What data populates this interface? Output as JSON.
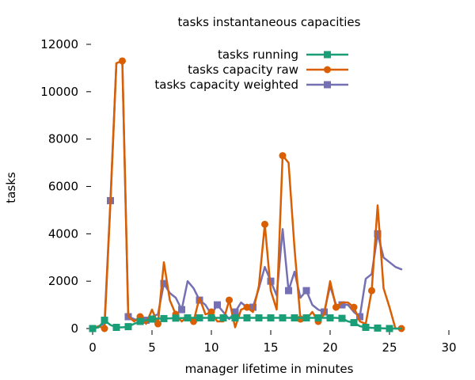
{
  "chart_data": {
    "type": "line",
    "title": "tasks instantaneous capacities",
    "xlabel": "manager lifetime in minutes",
    "ylabel": "tasks",
    "xlim": [
      0,
      30
    ],
    "ylim": [
      0,
      12000
    ],
    "xticks": [
      0,
      5,
      10,
      15,
      20,
      25,
      30
    ],
    "yticks": [
      0,
      2000,
      4000,
      6000,
      8000,
      10000,
      12000
    ],
    "grid": false,
    "legend_position": "top-right",
    "series": [
      {
        "name": "tasks running",
        "color": "#1a9e77",
        "marker": "square",
        "x": [
          0,
          0.5,
          1.0,
          1.5,
          2.0,
          2.5,
          3.0,
          3.5,
          4.0,
          4.5,
          5.0,
          5.5,
          6.0,
          6.5,
          7.0,
          7.5,
          8.0,
          8.5,
          9.0,
          9.5,
          10.0,
          10.5,
          11.0,
          11.5,
          12.0,
          12.5,
          13.0,
          13.5,
          14.0,
          14.5,
          15.0,
          15.5,
          16.0,
          16.5,
          17.0,
          17.5,
          18.0,
          18.5,
          19.0,
          19.5,
          20.0,
          20.5,
          21.0,
          21.5,
          22.0,
          22.5,
          23.0,
          23.5,
          24.0,
          24.5,
          25.0,
          25.5,
          26.0
        ],
        "y": [
          0,
          50,
          350,
          150,
          50,
          50,
          80,
          200,
          300,
          350,
          400,
          420,
          420,
          430,
          440,
          440,
          450,
          450,
          450,
          450,
          450,
          450,
          450,
          450,
          450,
          450,
          450,
          450,
          450,
          450,
          450,
          450,
          450,
          450,
          450,
          450,
          450,
          450,
          450,
          450,
          450,
          450,
          430,
          300,
          250,
          100,
          50,
          30,
          20,
          10,
          0,
          0,
          0
        ],
        "marker_x": [
          0,
          1.0,
          2.0,
          3.0,
          4.0,
          5.0,
          6.0,
          7.0,
          8.0,
          9.0,
          10.0,
          11.0,
          12.0,
          13.0,
          14.0,
          15.0,
          16.0,
          17.0,
          18.0,
          19.0,
          20.0,
          21.0,
          22.0,
          23.0,
          24.0,
          25.0
        ]
      },
      {
        "name": "tasks capacity raw",
        "color": "#d95f02",
        "marker": "circle",
        "x": [
          0,
          0.5,
          1.0,
          1.5,
          2.0,
          2.5,
          3.0,
          3.5,
          4.0,
          4.5,
          5.0,
          5.5,
          6.0,
          6.5,
          7.0,
          7.5,
          8.0,
          8.5,
          9.0,
          9.5,
          10.0,
          10.5,
          11.0,
          11.5,
          12.0,
          12.5,
          13.0,
          13.5,
          14.0,
          14.5,
          15.0,
          15.5,
          16.0,
          16.5,
          17.0,
          17.5,
          18.0,
          18.5,
          19.0,
          19.5,
          20.0,
          20.5,
          21.0,
          21.5,
          22.0,
          22.5,
          23.0,
          23.5,
          24.0,
          24.5,
          25.0,
          25.5,
          26.0
        ],
        "y": [
          0,
          100,
          0,
          5300,
          11200,
          11300,
          500,
          300,
          500,
          200,
          800,
          200,
          2800,
          1200,
          600,
          300,
          500,
          300,
          1300,
          600,
          700,
          300,
          300,
          1200,
          50,
          800,
          900,
          700,
          1800,
          4400,
          1600,
          800,
          7300,
          7000,
          3400,
          400,
          400,
          700,
          300,
          600,
          2000,
          900,
          1100,
          1100,
          900,
          300,
          200,
          1600,
          5200,
          1700,
          900,
          0,
          0
        ],
        "marker_x": [
          1.0,
          2.5,
          4.0,
          5.5,
          7.0,
          8.5,
          10.0,
          11.5,
          13.0,
          14.5,
          16.0,
          17.5,
          19.0,
          20.5,
          22.0,
          23.5,
          26.0
        ]
      },
      {
        "name": "tasks capacity weighted",
        "color": "#7570b3",
        "marker": "square",
        "x": [
          0,
          0.5,
          1.0,
          1.5,
          2.0,
          2.5,
          3.0,
          3.5,
          4.0,
          4.5,
          5.0,
          5.5,
          6.0,
          6.5,
          7.0,
          7.5,
          8.0,
          8.5,
          9.0,
          9.5,
          10.0,
          10.5,
          11.0,
          11.5,
          12.0,
          12.5,
          13.0,
          13.5,
          14.0,
          14.5,
          15.0,
          15.5,
          16.0,
          16.5,
          17.0,
          17.5,
          18.0,
          18.5,
          19.0,
          19.5,
          20.0,
          20.5,
          21.0,
          21.5,
          22.0,
          22.5,
          23.0,
          23.5,
          24.0,
          24.5,
          25.0,
          25.5,
          26.0
        ],
        "y": [
          0,
          100,
          200,
          5400,
          11200,
          11300,
          500,
          400,
          300,
          350,
          500,
          600,
          1900,
          1500,
          1300,
          800,
          2000,
          1700,
          1200,
          1000,
          600,
          1000,
          700,
          400,
          700,
          1100,
          900,
          900,
          1700,
          2600,
          2000,
          1400,
          4200,
          1600,
          2400,
          1300,
          1600,
          1000,
          800,
          700,
          1800,
          1000,
          1000,
          1000,
          700,
          500,
          2100,
          2300,
          4000,
          3000,
          2800,
          2600,
          2500
        ],
        "marker_x": [
          0,
          1.5,
          3.0,
          4.5,
          6.0,
          7.5,
          9.0,
          10.5,
          12.0,
          13.5,
          15.0,
          16.5,
          18.0,
          19.5,
          21.0,
          22.5,
          24.0
        ]
      }
    ]
  }
}
